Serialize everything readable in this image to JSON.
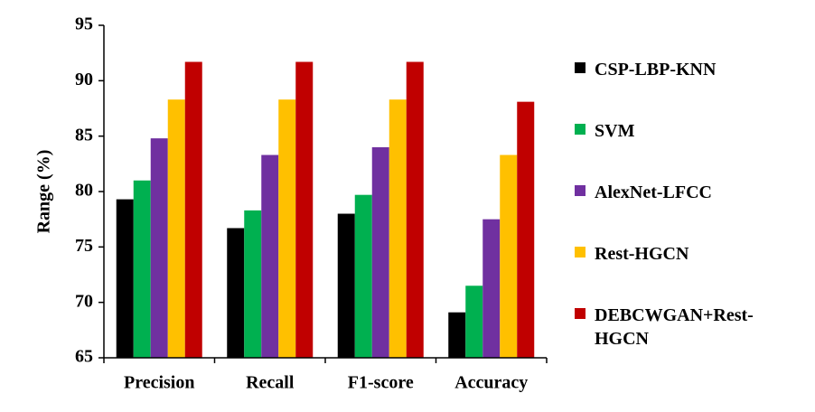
{
  "chart_data": {
    "type": "bar",
    "y_label": "Range (%)",
    "categories": [
      "Precision",
      "Recall",
      "F1-score",
      "Accuracy"
    ],
    "series": [
      {
        "name": "CSP-LBP-KNN",
        "color": "#000000",
        "values": [
          79.3,
          76.7,
          78.0,
          69.1
        ]
      },
      {
        "name": "SVM",
        "color": "#00b050",
        "values": [
          81.0,
          78.3,
          79.7,
          71.5
        ]
      },
      {
        "name": "AlexNet-LFCC",
        "color": "#7030a0",
        "values": [
          84.8,
          83.3,
          84.0,
          77.5
        ]
      },
      {
        "name": "Rest-HGCN",
        "color": "#ffc000",
        "values": [
          88.3,
          88.3,
          88.3,
          83.3
        ]
      },
      {
        "name": "DEBCWGAN+Rest-HGCN",
        "color": "#c00000",
        "values": [
          91.7,
          91.7,
          91.7,
          88.1
        ]
      }
    ],
    "ylim": [
      65,
      95
    ],
    "yticks": [
      65,
      70,
      75,
      80,
      85,
      90,
      95
    ],
    "grid": false,
    "legend": "right"
  }
}
